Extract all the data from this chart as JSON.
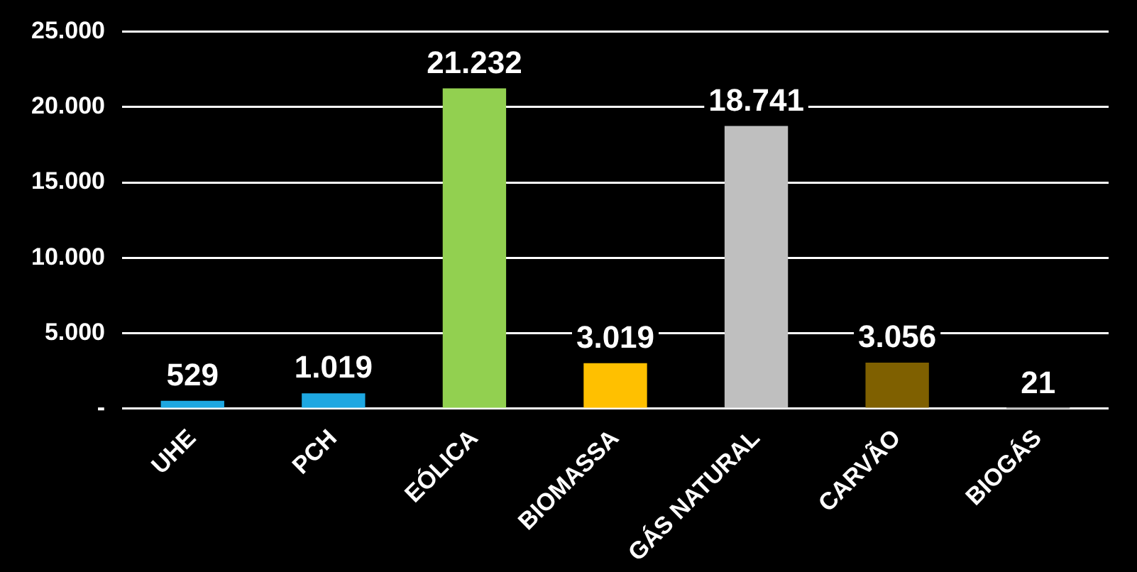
{
  "chart_data": {
    "type": "bar",
    "categories": [
      "UHE",
      "PCH",
      "EÓLICA",
      "BIOMASSA",
      "GÁS NATURAL",
      "CARVÃO",
      "BIOGÁS"
    ],
    "values": [
      529,
      1019,
      21232,
      3019,
      18741,
      3056,
      21
    ],
    "value_labels": [
      "529",
      "1.019",
      "21.232",
      "3.019",
      "18.741",
      "3.056",
      "21"
    ],
    "colors": [
      "#1ea7e1",
      "#1ea7e1",
      "#92d050",
      "#ffc000",
      "#bfbfbf",
      "#7f6000",
      "#595959"
    ],
    "ylim": [
      0,
      25000
    ],
    "yticks": [
      {
        "value": 0,
        "label": "-"
      },
      {
        "value": 5000,
        "label": "5.000"
      },
      {
        "value": 10000,
        "label": "10.000"
      },
      {
        "value": 15000,
        "label": "15.000"
      },
      {
        "value": 20000,
        "label": "20.000"
      },
      {
        "value": 25000,
        "label": "25.000"
      }
    ],
    "grid": true,
    "legend": false
  }
}
